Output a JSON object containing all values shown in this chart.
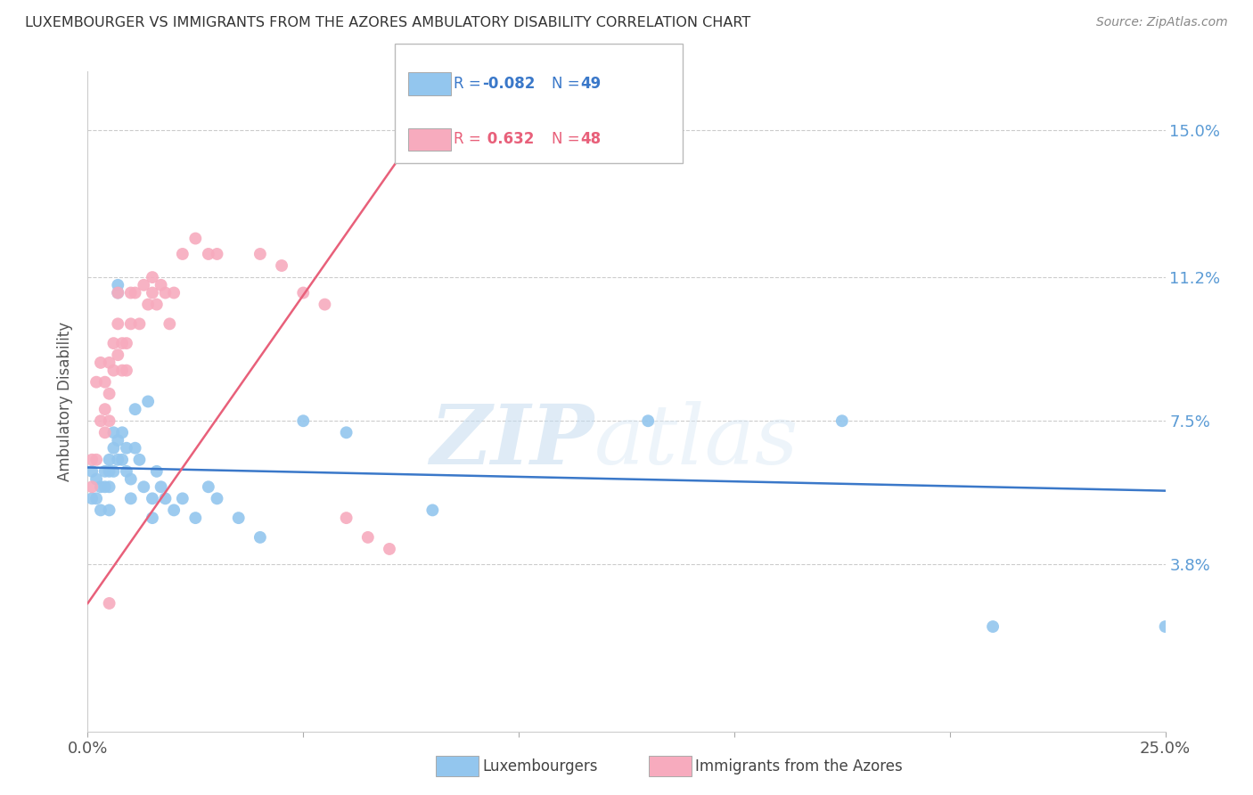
{
  "title": "LUXEMBOURGER VS IMMIGRANTS FROM THE AZORES AMBULATORY DISABILITY CORRELATION CHART",
  "source": "Source: ZipAtlas.com",
  "ylabel": "Ambulatory Disability",
  "ytick_vals": [
    0.038,
    0.075,
    0.112,
    0.15
  ],
  "ytick_labels": [
    "3.8%",
    "7.5%",
    "11.2%",
    "15.0%"
  ],
  "xlim": [
    0.0,
    0.25
  ],
  "ylim": [
    -0.005,
    0.165
  ],
  "legend_blue_r": "R = -0.082",
  "legend_blue_n": "N = 49",
  "legend_pink_r": "R =  0.632",
  "legend_pink_n": "N = 48",
  "legend_blue_label": "Luxembourgers",
  "legend_pink_label": "Immigrants from the Azores",
  "blue_color": "#93C6EE",
  "pink_color": "#F7ABBE",
  "blue_line_color": "#3A78C9",
  "pink_line_color": "#E8607A",
  "watermark_zip": "ZIP",
  "watermark_atlas": "atlas",
  "background_color": "#ffffff",
  "blue_scatter_x": [
    0.001,
    0.001,
    0.002,
    0.002,
    0.003,
    0.003,
    0.004,
    0.004,
    0.005,
    0.005,
    0.005,
    0.005,
    0.006,
    0.006,
    0.006,
    0.007,
    0.007,
    0.007,
    0.007,
    0.008,
    0.008,
    0.009,
    0.009,
    0.01,
    0.01,
    0.011,
    0.011,
    0.012,
    0.013,
    0.014,
    0.015,
    0.015,
    0.016,
    0.017,
    0.018,
    0.02,
    0.022,
    0.025,
    0.028,
    0.03,
    0.035,
    0.04,
    0.05,
    0.06,
    0.08,
    0.13,
    0.175,
    0.21,
    0.25
  ],
  "blue_scatter_y": [
    0.062,
    0.055,
    0.06,
    0.055,
    0.058,
    0.052,
    0.062,
    0.058,
    0.065,
    0.062,
    0.058,
    0.052,
    0.072,
    0.068,
    0.062,
    0.11,
    0.108,
    0.07,
    0.065,
    0.072,
    0.065,
    0.068,
    0.062,
    0.06,
    0.055,
    0.078,
    0.068,
    0.065,
    0.058,
    0.08,
    0.055,
    0.05,
    0.062,
    0.058,
    0.055,
    0.052,
    0.055,
    0.05,
    0.058,
    0.055,
    0.05,
    0.045,
    0.075,
    0.072,
    0.052,
    0.075,
    0.075,
    0.022,
    0.022
  ],
  "pink_scatter_x": [
    0.001,
    0.001,
    0.002,
    0.002,
    0.003,
    0.003,
    0.004,
    0.004,
    0.004,
    0.005,
    0.005,
    0.005,
    0.006,
    0.006,
    0.007,
    0.007,
    0.007,
    0.008,
    0.008,
    0.009,
    0.009,
    0.01,
    0.01,
    0.011,
    0.012,
    0.013,
    0.014,
    0.015,
    0.015,
    0.016,
    0.017,
    0.018,
    0.019,
    0.02,
    0.022,
    0.025,
    0.028,
    0.03,
    0.04,
    0.045,
    0.05,
    0.055,
    0.06,
    0.065,
    0.07,
    0.075,
    0.08,
    0.005
  ],
  "pink_scatter_y": [
    0.065,
    0.058,
    0.085,
    0.065,
    0.09,
    0.075,
    0.085,
    0.078,
    0.072,
    0.09,
    0.082,
    0.075,
    0.095,
    0.088,
    0.108,
    0.1,
    0.092,
    0.095,
    0.088,
    0.095,
    0.088,
    0.108,
    0.1,
    0.108,
    0.1,
    0.11,
    0.105,
    0.112,
    0.108,
    0.105,
    0.11,
    0.108,
    0.1,
    0.108,
    0.118,
    0.122,
    0.118,
    0.118,
    0.118,
    0.115,
    0.108,
    0.105,
    0.05,
    0.045,
    0.042,
    0.148,
    0.148,
    0.028
  ],
  "blue_line_x0": 0.0,
  "blue_line_y0": 0.063,
  "blue_line_x1": 0.25,
  "blue_line_y1": 0.057,
  "pink_line_x0": 0.0,
  "pink_line_y0": 0.028,
  "pink_line_x1": 0.08,
  "pink_line_y1": 0.155
}
